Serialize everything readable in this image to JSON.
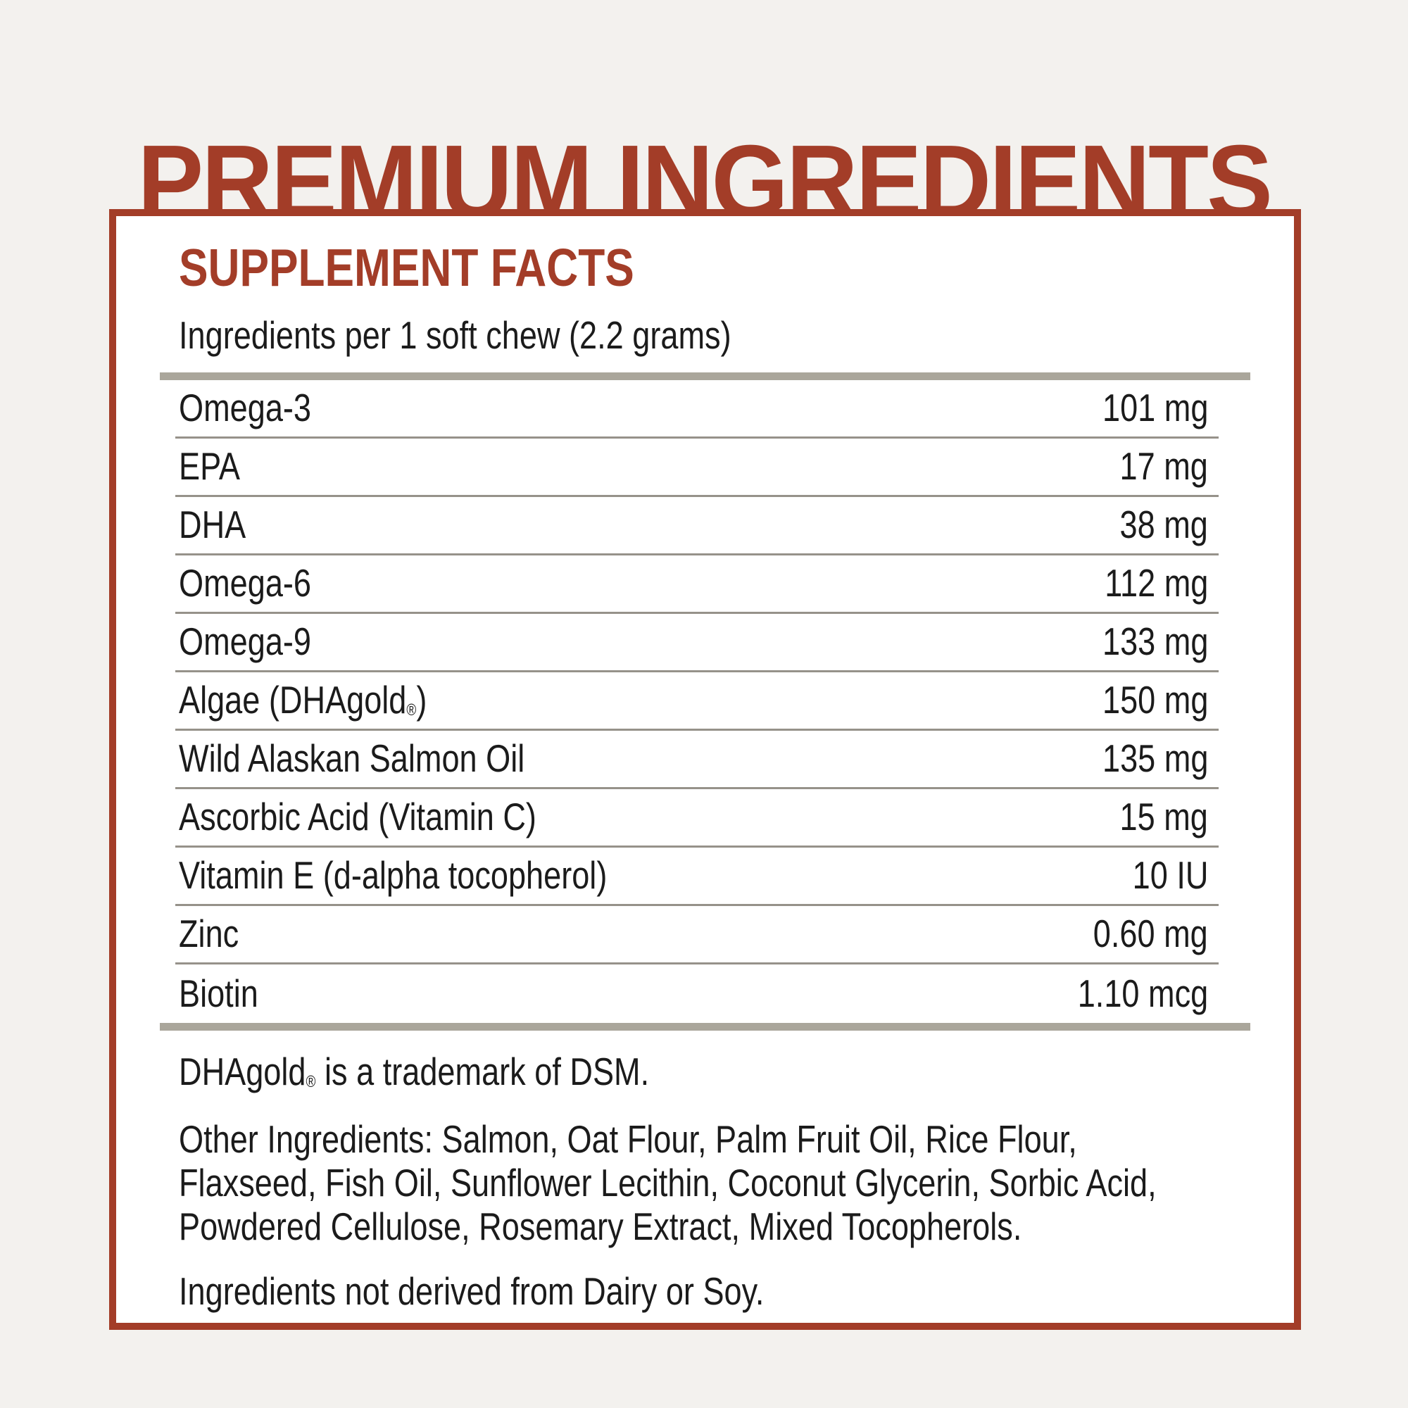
{
  "colors": {
    "accent": "#a33d28",
    "page_background": "#f3f1ee",
    "panel_background": "#ffffff",
    "thick_bar": "#aaa69b",
    "row_line": "#96928a",
    "text": "#1b1b1b"
  },
  "title": "PREMIUM INGREDIENTS",
  "panel": {
    "heading": "SUPPLEMENT FACTS",
    "serving_line": "Ingredients per 1 soft chew (2.2 grams)",
    "rows": [
      {
        "label": "Omega-3",
        "reg": "",
        "label_suffix": "",
        "value": "101 mg"
      },
      {
        "label": "EPA",
        "reg": "",
        "label_suffix": "",
        "value": "17 mg"
      },
      {
        "label": "DHA",
        "reg": "",
        "label_suffix": "",
        "value": "38 mg"
      },
      {
        "label": "Omega-6",
        "reg": "",
        "label_suffix": "",
        "value": "112 mg"
      },
      {
        "label": "Omega-9",
        "reg": "",
        "label_suffix": "",
        "value": "133 mg"
      },
      {
        "label": "Algae (DHAgold",
        "reg": "®",
        "label_suffix": ")",
        "value": "150 mg"
      },
      {
        "label": "Wild Alaskan Salmon Oil",
        "reg": "",
        "label_suffix": "",
        "value": "135 mg"
      },
      {
        "label": "Ascorbic Acid (Vitamin C)",
        "reg": "",
        "label_suffix": "",
        "value": "15 mg"
      },
      {
        "label": "Vitamin E (d-alpha tocopherol)",
        "reg": "",
        "label_suffix": "",
        "value": "10 IU"
      },
      {
        "label": "Zinc",
        "reg": "",
        "label_suffix": "",
        "value": "0.60 mg"
      },
      {
        "label": "Biotin",
        "reg": "",
        "label_suffix": "",
        "value": "1.10 mcg"
      }
    ],
    "trademark": {
      "pre": "DHAgold",
      "reg": "®",
      "post": " is a trademark of DSM."
    },
    "other_ingredients_lines": [
      "Other Ingredients: Salmon, Oat Flour, Palm Fruit Oil, Rice Flour,",
      "Flaxseed, Fish Oil, Sunflower Lecithin, Coconut Glycerin, Sorbic Acid,",
      "Powdered Cellulose, Rosemary Extract, Mixed Tocopherols."
    ],
    "allergen_note": "Ingredients not derived from Dairy or Soy."
  }
}
